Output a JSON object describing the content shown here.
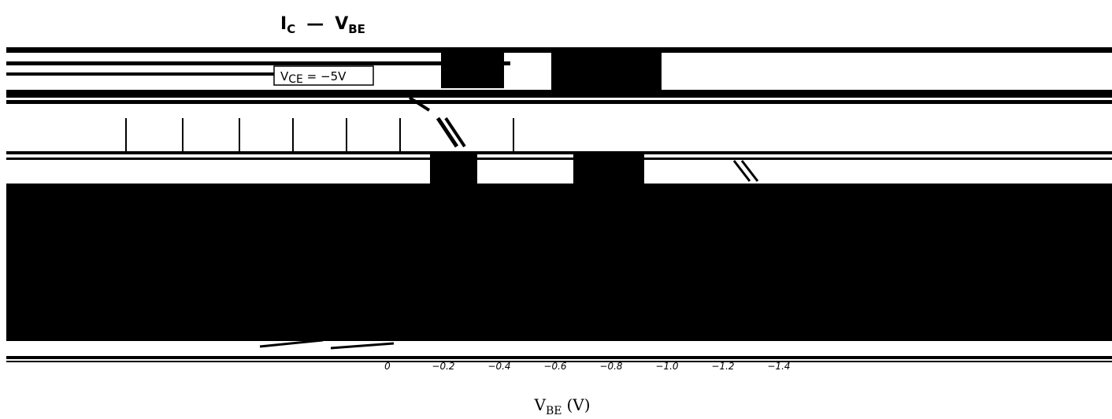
{
  "chart_data": {
    "type": "line",
    "title": {
      "main": "I",
      "main_sub": "C",
      "dash": "—",
      "second": "V",
      "second_sub": "BE"
    },
    "xlabel": {
      "main": "V",
      "sub": "BE",
      "unit": "(V)"
    },
    "x_ticks": [
      "0",
      "−0.2",
      "−0.4",
      "−0.6",
      "−0.8",
      "−1.0",
      "−1.2",
      "−1.4"
    ],
    "annotations": [
      {
        "main": "V",
        "sub": "CE",
        "rest": " = −5V"
      }
    ],
    "colors": {
      "background": "#ffffff",
      "ink": "#000000"
    }
  }
}
